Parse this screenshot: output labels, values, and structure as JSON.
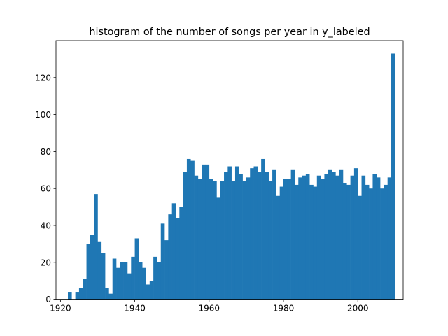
{
  "chart_data": {
    "type": "bar",
    "title": "histogram of the number of songs per year in y_labeled",
    "xlabel": "",
    "ylabel": "",
    "x_ticks": [
      1920,
      1940,
      1960,
      1980,
      2000
    ],
    "y_ticks": [
      0,
      20,
      40,
      60,
      80,
      100,
      120
    ],
    "xlim": [
      1918.8,
      2012.2
    ],
    "ylim": [
      0,
      140
    ],
    "bar_color": "#1f77b4",
    "bins": {
      "start": 1922,
      "end": 2010,
      "count": 88
    },
    "values": [
      4,
      0,
      4,
      6,
      11,
      30,
      35,
      57,
      31,
      25,
      6,
      3,
      22,
      17,
      20,
      20,
      14,
      23,
      33,
      20,
      17,
      8,
      10,
      23,
      20,
      41,
      32,
      46,
      52,
      44,
      50,
      69,
      76,
      75,
      67,
      65,
      73,
      73,
      65,
      64,
      55,
      64,
      69,
      72,
      64,
      72,
      68,
      64,
      66,
      71,
      72,
      69,
      76,
      69,
      64,
      70,
      56,
      61,
      65,
      65,
      70,
      62,
      66,
      67,
      68,
      62,
      61,
      67,
      65,
      68,
      70,
      69,
      67,
      70,
      63,
      62,
      67,
      71,
      56,
      67,
      62,
      60,
      68,
      66,
      60,
      62,
      66,
      133
    ],
    "grid": false
  }
}
